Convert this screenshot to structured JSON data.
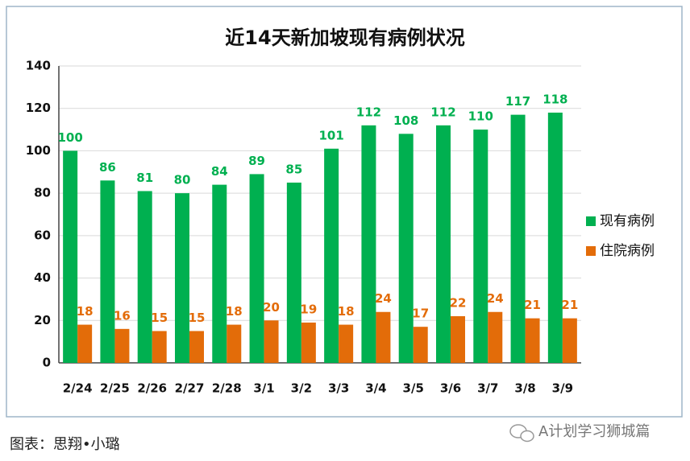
{
  "chart_data": {
    "type": "bar",
    "title": "近14天新加坡现有病例状况",
    "categories": [
      "2/24",
      "2/25",
      "2/26",
      "2/27",
      "2/28",
      "3/1",
      "3/2",
      "3/3",
      "3/4",
      "3/5",
      "3/6",
      "3/7",
      "3/8",
      "3/9"
    ],
    "series": [
      {
        "name": "现有病例",
        "color": "#00b050",
        "values": [
          100,
          86,
          81,
          80,
          84,
          89,
          85,
          101,
          112,
          108,
          112,
          110,
          117,
          118
        ]
      },
      {
        "name": "住院病例",
        "color": "#e36c09",
        "values": [
          18,
          16,
          15,
          15,
          18,
          20,
          19,
          18,
          24,
          17,
          22,
          24,
          21,
          21
        ]
      }
    ],
    "ylim": [
      0,
      140
    ],
    "yticks": [
      0,
      20,
      40,
      60,
      80,
      100,
      120,
      140
    ],
    "grid": true,
    "legend": "right"
  },
  "caption": "图表：思翔•小璐",
  "watermark": "A计划学习狮城篇"
}
